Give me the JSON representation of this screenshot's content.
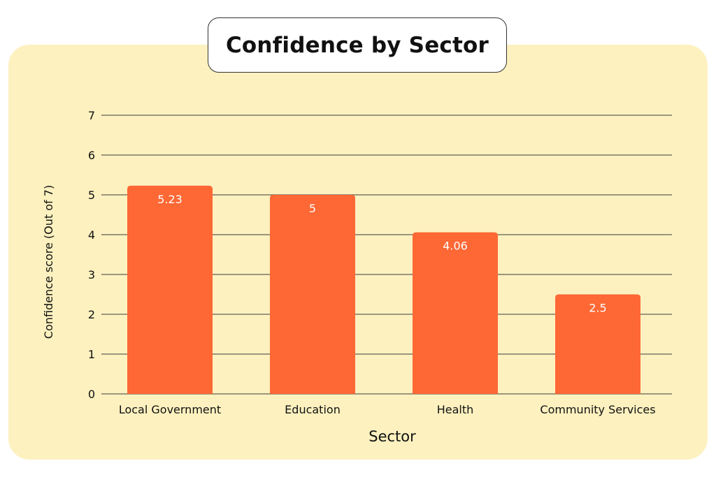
{
  "chart_data": {
    "type": "bar",
    "title": "Confidence by Sector",
    "xlabel": "Sector",
    "ylabel": "Confidence score (Out of 7)",
    "categories": [
      "Local Government",
      "Education",
      "Health",
      "Community Services"
    ],
    "values": [
      5.23,
      5,
      4.06,
      2.5
    ],
    "value_labels": [
      "5.23",
      "5",
      "4.06",
      "2.5"
    ],
    "yticks": [
      "0",
      "1",
      "2",
      "3",
      "4",
      "5",
      "6",
      "7"
    ],
    "ylim": [
      0,
      7
    ],
    "grid": true,
    "legend": "none"
  },
  "colors": {
    "bar": "#fd6835",
    "panel_background": "#fdf1bf",
    "grid": "#3a3a3a",
    "value_label": "#ffffff"
  }
}
